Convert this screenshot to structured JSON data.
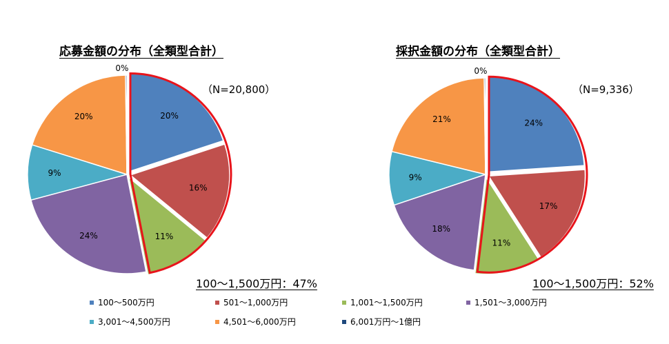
{
  "chart_data": [
    {
      "type": "pie",
      "title": "応募金額の分布（全類型合計）",
      "n_label": "（N=20,800）",
      "summary": "100～1,500万円：47%",
      "categories": [
        "100～500万円",
        "501～1,000万円",
        "1,001～1,500万円",
        "1,501～3,000万円",
        "3,001～4,500万円",
        "4,501～6,000万円",
        "6,001万円～1億円"
      ],
      "values": [
        20,
        16,
        11,
        24,
        9,
        20,
        0
      ],
      "labels": [
        "20%",
        "16%",
        "11%",
        "24%",
        "9%",
        "20%",
        "0%"
      ],
      "highlighted": [
        0,
        1,
        2
      ]
    },
    {
      "type": "pie",
      "title": "採択金額の分布（全類型合計）",
      "n_label": "（N=9,336）",
      "summary": "100～1,500万円：52%",
      "categories": [
        "100～500万円",
        "501～1,000万円",
        "1,001～1,500万円",
        "1,501～3,000万円",
        "3,001～4,500万円",
        "4,501～6,000万円",
        "6,001万円～1億円"
      ],
      "values": [
        24,
        17,
        11,
        18,
        9,
        21,
        0
      ],
      "labels": [
        "24%",
        "17%",
        "11%",
        "18%",
        "9%",
        "21%",
        "0%"
      ],
      "highlighted": [
        0,
        1,
        2
      ]
    }
  ],
  "legend": [
    {
      "label": "100～500万円",
      "color": "#4F81BD"
    },
    {
      "label": "501～1,000万円",
      "color": "#C0504D"
    },
    {
      "label": "1,001～1,500万円",
      "color": "#9BBB59"
    },
    {
      "label": "1,501～3,000万円",
      "color": "#8064A2"
    },
    {
      "label": "3,001～4,500万円",
      "color": "#4BACC6"
    },
    {
      "label": "4,501～6,000万円",
      "color": "#F79646"
    },
    {
      "label": "6,001万円～1億円",
      "color": "#1F497D"
    }
  ],
  "colors": {
    "highlight": "#E8141B",
    "slice_border": "#ffffff"
  }
}
